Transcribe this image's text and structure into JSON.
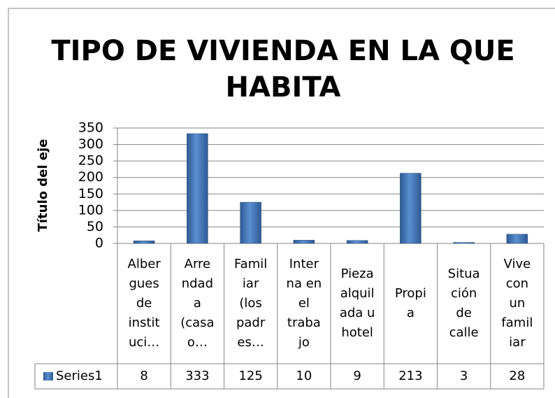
{
  "chart_data": {
    "type": "bar",
    "title": "TIPO DE VIVIENDA EN LA QUE\nHABITA",
    "y_axis_label": "Título del eje",
    "categories": [
      "Alber\ngues\nde\ninstit\nuci…",
      "Arre\nndad\na\n(casa\no…",
      "Famil\niar\n(los\npadr\nes…",
      "Inter\nna en\nel\ntraba\njo",
      "Pieza\nalquil\nada u\nhotel",
      "Propi\na",
      "Situa\nción\nde\ncalle",
      "Vive\ncon\nun\nfamil\niar"
    ],
    "series": [
      {
        "name": "Series1",
        "color": "#4f81bd",
        "values": [
          8,
          333,
          125,
          10,
          9,
          213,
          3,
          28
        ]
      }
    ],
    "ylim": [
      0,
      350
    ],
    "yticks": [
      0,
      50,
      100,
      150,
      200,
      250,
      300,
      350
    ],
    "grid": true
  }
}
